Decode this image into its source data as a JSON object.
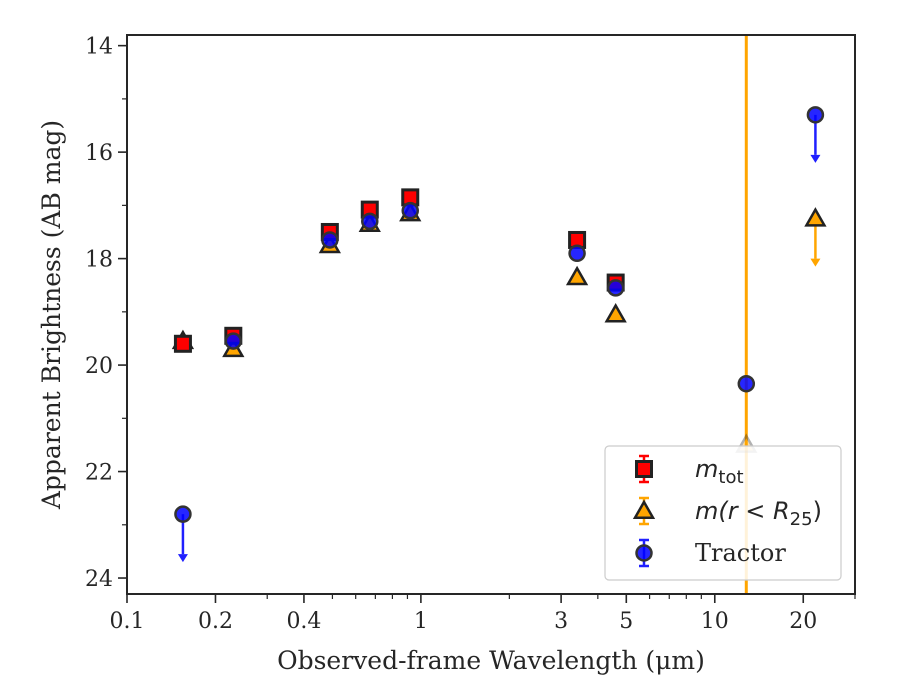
{
  "chart_data": {
    "type": "scatter",
    "title": "",
    "xlabel": "Observed-frame Wavelength (μm)",
    "ylabel": "Apparent Brightness (AB mag)",
    "xscale": "log",
    "xlim": [
      0.1,
      30
    ],
    "ylim": [
      24.3,
      13.8
    ],
    "y_inverted": true,
    "grid": false,
    "x_ticks": [
      {
        "value": 0.1,
        "label": "0.1"
      },
      {
        "value": 0.2,
        "label": "0.2"
      },
      {
        "value": 0.4,
        "label": "0.4"
      },
      {
        "value": 1,
        "label": "1"
      },
      {
        "value": 3,
        "label": "3"
      },
      {
        "value": 5,
        "label": "5"
      },
      {
        "value": 10,
        "label": "10"
      },
      {
        "value": 20,
        "label": "20"
      }
    ],
    "y_ticks": [
      {
        "value": 14,
        "label": "14"
      },
      {
        "value": 16,
        "label": "16"
      },
      {
        "value": 18,
        "label": "18"
      },
      {
        "value": 20,
        "label": "20"
      },
      {
        "value": 22,
        "label": "22"
      },
      {
        "value": 24,
        "label": "24"
      }
    ],
    "vertical_line": {
      "x": 12.8,
      "color": "#ffa500"
    },
    "legend_placement": "lower-right",
    "series": [
      {
        "name": "m_tot",
        "legend_parts": [
          "m",
          "tot"
        ],
        "marker": "square",
        "color": "#ff0000",
        "edge": "#222222",
        "points": [
          {
            "x": 0.155,
            "y": 19.6
          },
          {
            "x": 0.23,
            "y": 19.45
          },
          {
            "x": 0.49,
            "y": 17.5
          },
          {
            "x": 0.67,
            "y": 17.08
          },
          {
            "x": 0.92,
            "y": 16.85
          },
          {
            "x": 3.4,
            "y": 17.65
          },
          {
            "x": 4.6,
            "y": 18.45
          }
        ]
      },
      {
        "name": "m(r < R25)",
        "legend_parts": [
          "m(r < R",
          "25",
          ")"
        ],
        "marker": "triangle",
        "color": "#ffa500",
        "edge": "#222222",
        "points": [
          {
            "x": 0.155,
            "y": 19.55
          },
          {
            "x": 0.23,
            "y": 19.7
          },
          {
            "x": 0.49,
            "y": 17.75
          },
          {
            "x": 0.67,
            "y": 17.35
          },
          {
            "x": 0.92,
            "y": 17.15
          },
          {
            "x": 3.4,
            "y": 18.35
          },
          {
            "x": 4.6,
            "y": 19.05
          },
          {
            "x": 12.8,
            "y": 21.5,
            "faded": true
          },
          {
            "x": 22,
            "y": 17.25,
            "upper_limit": true
          }
        ]
      },
      {
        "name": "Tractor",
        "legend_parts": [
          "Tractor"
        ],
        "marker": "circle",
        "color": "#0000ff",
        "edge": "#333333",
        "points": [
          {
            "x": 0.155,
            "y": 22.8,
            "upper_limit": true
          },
          {
            "x": 0.23,
            "y": 19.55
          },
          {
            "x": 0.49,
            "y": 17.65
          },
          {
            "x": 0.67,
            "y": 17.3
          },
          {
            "x": 0.92,
            "y": 17.1
          },
          {
            "x": 3.4,
            "y": 17.9
          },
          {
            "x": 4.6,
            "y": 18.55
          },
          {
            "x": 12.8,
            "y": 20.35
          },
          {
            "x": 22,
            "y": 15.3,
            "upper_limit": true
          }
        ]
      }
    ]
  }
}
